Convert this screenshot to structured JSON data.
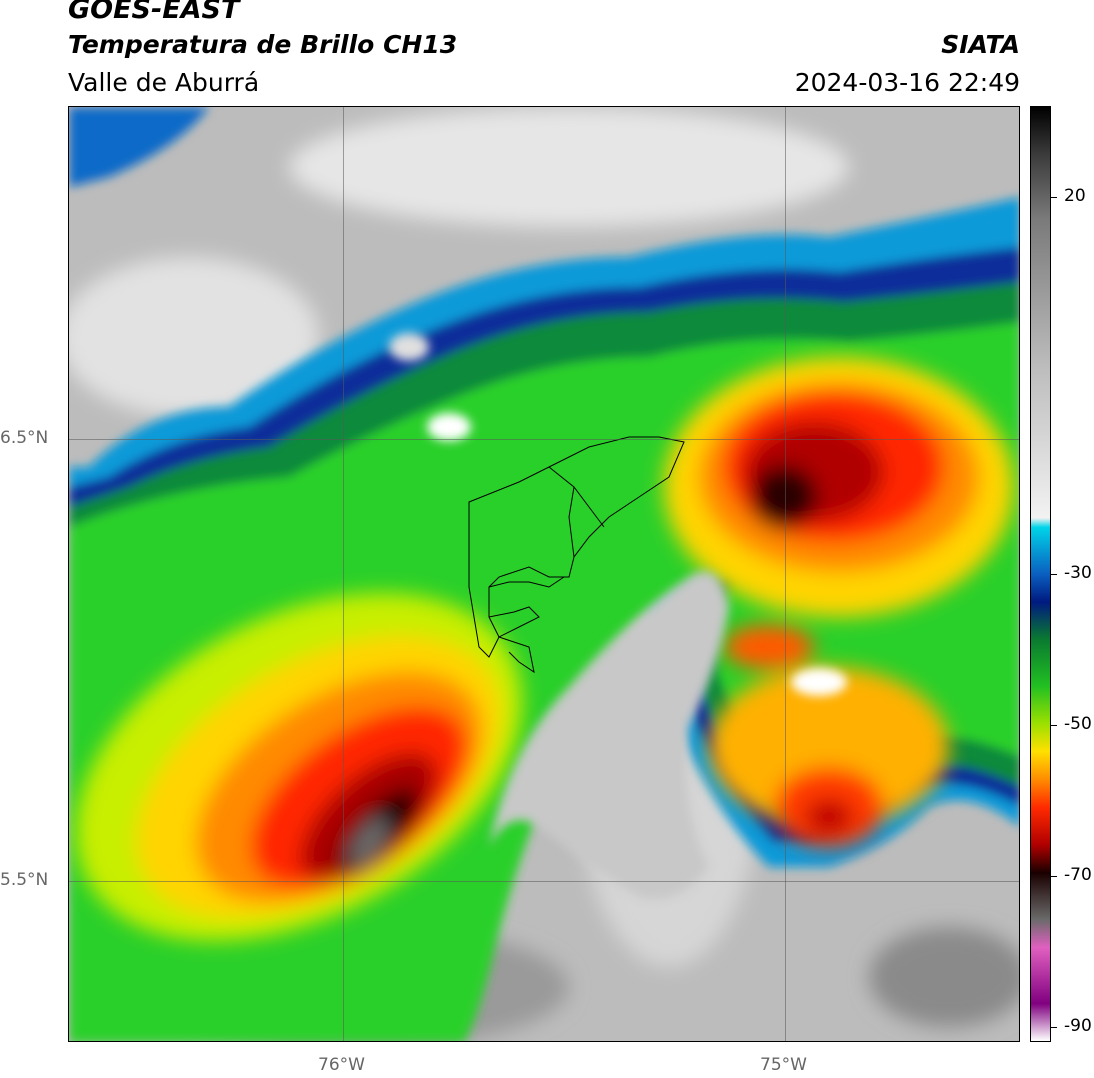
{
  "header": {
    "satellite": "GOES-EAST",
    "product": "Temperatura de Brillo CH13",
    "organization": "SIATA",
    "region": "Valle de Aburrá",
    "timestamp": "2024-03-16 22:49"
  },
  "map": {
    "lat_labels": [
      "6.5°N",
      "5.5°N"
    ],
    "lon_labels": [
      "76°W",
      "75°W"
    ]
  },
  "colorbar": {
    "tick_labels": [
      "20",
      "-30",
      "-50",
      "-70",
      "-90"
    ],
    "colors": [
      "#000000",
      "#3a3a3a",
      "#7a7a7a",
      "#bdbdbd",
      "#f2f2f2",
      "#00d4e8",
      "#0a5fc0",
      "#001a80",
      "#0a7a30",
      "#22c022",
      "#9be000",
      "#ffe000",
      "#ff8c00",
      "#ff2a00",
      "#b00000",
      "#1a0000",
      "#6a6a6a",
      "#e060c0",
      "#800080",
      "#ffffff"
    ]
  },
  "chart_data": {
    "type": "heatmap",
    "title": "Temperatura de Brillo CH13",
    "xlabel": "",
    "ylabel": "",
    "x_ticks": [
      "76°W",
      "75°W"
    ],
    "y_ticks": [
      "6.5°N",
      "5.5°N"
    ],
    "colorbar_ticks": [
      20,
      -30,
      -50,
      -70,
      -90
    ],
    "colorbar_range": [
      -92,
      32
    ]
  }
}
